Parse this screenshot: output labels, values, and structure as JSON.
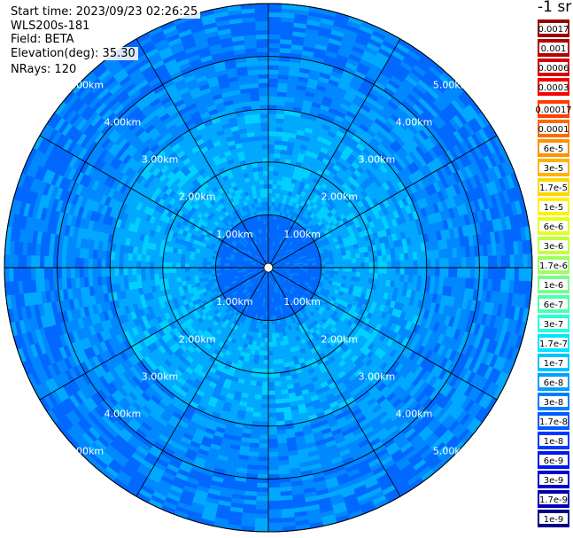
{
  "info": {
    "start_time": "Start time: 2023/09/23 02:26:25",
    "instrument": "WLS200s-181",
    "field": "Field: BETA",
    "elevation": "Elevation(deg): 35.30",
    "nrays": "NRays: 120"
  },
  "colorbar": {
    "unit_label": "-1 sr",
    "labels": [
      "0.0017",
      "0.001",
      "0.0006",
      "0.0003",
      "0.00017",
      "0.0001",
      "6e-5",
      "3e-5",
      "1.7e-5",
      "1e-5",
      "6e-6",
      "3e-6",
      "1.7e-6",
      "1e-6",
      "6e-7",
      "3e-7",
      "1.7e-7",
      "1e-7",
      "6e-8",
      "3e-8",
      "1.7e-8",
      "1e-8",
      "6e-9",
      "3e-9",
      "1.7e-9",
      "1e-9"
    ],
    "colors": [
      "#9a0000",
      "#b40000",
      "#d80000",
      "#f50000",
      "#ff3d00",
      "#ff6a00",
      "#ff9000",
      "#ffb300",
      "#ffd500",
      "#fff200",
      "#e2ff1a",
      "#c2ff3d",
      "#9dff62",
      "#76ff88",
      "#4dffb0",
      "#25ffd8",
      "#00e4ff",
      "#00c2ff",
      "#009fff",
      "#007cff",
      "#005aff",
      "#0038ff",
      "#0018f0",
      "#0000d0",
      "#0000b0",
      "#000088"
    ]
  },
  "chart_data": {
    "type": "heatmap",
    "projection": "polar",
    "n_rays": 120,
    "max_range_km": 5.0,
    "range_rings_km": [
      1,
      2,
      3,
      4,
      5
    ],
    "ring_labels": [
      "1.00km",
      "2.00km",
      "3.00km",
      "4.00km",
      "5.00km"
    ],
    "azimuth_spokes_deg": [
      0,
      30,
      60,
      90,
      120,
      150,
      180,
      210,
      240,
      270,
      300,
      330
    ],
    "scale": "log",
    "range_profile": [
      {
        "r_km": 0.0,
        "value": "1.7e-8"
      },
      {
        "r_km": 1.0,
        "value": "3e-8"
      },
      {
        "r_km": 2.0,
        "value": "3e-8"
      },
      {
        "r_km": 3.0,
        "value": "1.7e-8"
      },
      {
        "r_km": 5.0,
        "value": "1.7e-8"
      }
    ]
  }
}
